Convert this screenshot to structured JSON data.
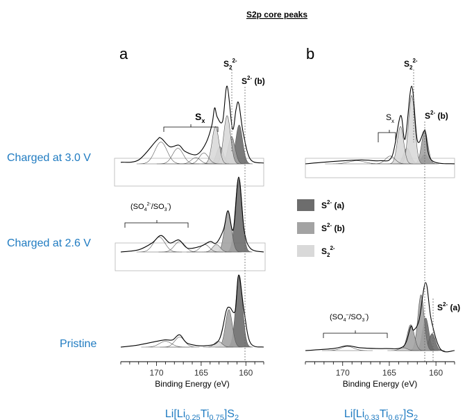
{
  "figure_title": "S2p core peaks",
  "panel_labels": {
    "a": "a",
    "b": "b"
  },
  "row_labels": {
    "charged_30": "Charged at 3.0 V",
    "charged_26": "Charged at 2.6 V",
    "pristine": "Pristine"
  },
  "compositions": {
    "a": {
      "pre": "Li[Li",
      "s1": "0.25",
      "mid": "Ti",
      "s2": "0.75",
      "post": "]S",
      "s3": "2"
    },
    "b": {
      "pre": "Li[Li",
      "s1": "0.33",
      "mid": "Ti",
      "s2": "0.67",
      "post": "]S",
      "s3": "2"
    }
  },
  "annotations": {
    "sx": {
      "base": "S",
      "sub": "x"
    },
    "s22": {
      "base": "S",
      "sub": "2",
      "sup": "2-"
    },
    "s2b": {
      "base": "S",
      "sup": "2-",
      "tail": " (b)"
    },
    "s2a": {
      "base": "S",
      "sup": "2-",
      "tail": " (a)"
    },
    "sulfate_a": {
      "o": "(SO",
      "sub1": "4",
      "sup1": "2-",
      "mid": "/SO",
      "sub2": "3",
      "sup2": "-",
      "c": ")"
    },
    "sulfate_b": {
      "o": "(SO",
      "sub1": "4",
      "sup1": "–",
      "mid": "/SO",
      "sub2": "3",
      "sup2": "-",
      "c": ")"
    }
  },
  "legend": [
    {
      "key": "s2a",
      "base": "S",
      "sup": "2-",
      "tail": " (a)",
      "color": "#6d6d6d"
    },
    {
      "key": "s2b",
      "base": "S",
      "sup": "2-",
      "tail": " (b)",
      "color": "#a3a3a3"
    },
    {
      "key": "s22",
      "base": "S",
      "sub": "2",
      "sup": "2-",
      "tail": "",
      "color": "#d9d9d9"
    }
  ],
  "colors": {
    "row_label": "#1f7bc1",
    "composition": "#1f7bc1",
    "s2a_fill": "#6d6d6d",
    "s2b_fill": "#a3a3a3",
    "s22_fill": "#d9d9d9",
    "envelope": "#000000"
  },
  "chart_data": {
    "type": "line",
    "xlabel": "Binding Energy (eV)",
    "x_reversed": true,
    "xlim": [
      174,
      158
    ],
    "x_ticks": [
      170,
      165,
      160
    ],
    "y_axis_shown": false,
    "panels": [
      {
        "panel": "a",
        "spectra": [
          {
            "row": "Charged at 3.0 V",
            "envelope": [
              [
                174,
                0.02
              ],
              [
                172,
                0.05
              ],
              [
                170,
                0.3
              ],
              [
                169.5,
                0.33
              ],
              [
                168.5,
                0.22
              ],
              [
                167.5,
                0.24
              ],
              [
                166.8,
                0.16
              ],
              [
                165.5,
                0.12
              ],
              [
                164.5,
                0.26
              ],
              [
                163.8,
                0.5
              ],
              [
                163.5,
                0.72
              ],
              [
                163.2,
                0.6
              ],
              [
                162.6,
                0.55
              ],
              [
                162.1,
                1.0
              ],
              [
                161.5,
                0.45
              ],
              [
                161.1,
                0.7
              ],
              [
                160.8,
                0.78
              ],
              [
                160.3,
                0.4
              ],
              [
                159.5,
                0.06
              ],
              [
                158,
                0.01
              ]
            ],
            "components": [
              {
                "species": "S2- (a)",
                "center": 160.75,
                "height": 0.5,
                "fwhm": 0.9
              },
              {
                "species": "S2- (b)",
                "center": 161.6,
                "height": 0.35,
                "fwhm": 0.9
              },
              {
                "species": "S2- (b)",
                "center": 162.9,
                "height": 0.22,
                "fwhm": 0.9
              },
              {
                "species": "S2 2-",
                "center": 162.1,
                "height": 0.62,
                "fwhm": 0.9
              },
              {
                "species": "S2 2-",
                "center": 163.4,
                "height": 0.48,
                "fwhm": 0.9
              },
              {
                "species": "Sx",
                "center": 164.7,
                "height": 0.14,
                "fwhm": 1.2
              },
              {
                "species": "Sx",
                "center": 165.6,
                "height": 0.08,
                "fwhm": 1.2
              },
              {
                "species": "SO4 2-/SO3 -",
                "center": 169.5,
                "height": 0.28,
                "fwhm": 1.6
              },
              {
                "species": "SO4 2-/SO3 -",
                "center": 167.6,
                "height": 0.2,
                "fwhm": 1.4
              }
            ]
          },
          {
            "row": "Charged at 2.6 V",
            "envelope": [
              [
                174,
                0.0
              ],
              [
                172,
                0.03
              ],
              [
                170.5,
                0.12
              ],
              [
                169.5,
                0.22
              ],
              [
                168.5,
                0.12
              ],
              [
                167.5,
                0.16
              ],
              [
                166.5,
                0.05
              ],
              [
                165,
                0.08
              ],
              [
                164,
                0.14
              ],
              [
                163.3,
                0.12
              ],
              [
                162.5,
                0.3
              ],
              [
                162.0,
                0.55
              ],
              [
                161.4,
                0.3
              ],
              [
                160.8,
                1.0
              ],
              [
                160.2,
                0.3
              ],
              [
                159.5,
                0.05
              ],
              [
                158,
                0.0
              ]
            ],
            "components": [
              {
                "species": "S2- (a)",
                "center": 160.8,
                "height": 1.0,
                "fwhm": 0.9
              },
              {
                "species": "S2- (b)",
                "center": 162.0,
                "height": 0.55,
                "fwhm": 0.9
              },
              {
                "species": "S2 2-",
                "center": 163.3,
                "height": 0.1,
                "fwhm": 1.0
              },
              {
                "species": "Sx",
                "center": 164.6,
                "height": 0.1,
                "fwhm": 1.2
              },
              {
                "species": "SO4 2-/SO3 -",
                "center": 169.7,
                "height": 0.2,
                "fwhm": 1.5
              },
              {
                "species": "SO4 2-/SO3 -",
                "center": 167.4,
                "height": 0.14,
                "fwhm": 1.4
              }
            ]
          },
          {
            "row": "Pristine",
            "envelope": [
              [
                174,
                0.0
              ],
              [
                172,
                0.03
              ],
              [
                170,
                0.08
              ],
              [
                169,
                0.1
              ],
              [
                168.2,
                0.1
              ],
              [
                167.4,
                0.17
              ],
              [
                166.5,
                0.05
              ],
              [
                164.5,
                0.02
              ],
              [
                163,
                0.1
              ],
              [
                162.2,
                0.5
              ],
              [
                161.8,
                0.55
              ],
              [
                161.2,
                0.5
              ],
              [
                160.8,
                1.0
              ],
              [
                160.2,
                0.5
              ],
              [
                159.5,
                0.06
              ],
              [
                158,
                0.0
              ]
            ],
            "components": [
              {
                "species": "S2- (a)",
                "center": 160.75,
                "height": 1.0,
                "fwhm": 0.9
              },
              {
                "species": "S2- (b)",
                "center": 161.9,
                "height": 0.52,
                "fwhm": 0.9
              },
              {
                "species": "S2 2-",
                "center": 163.1,
                "height": 0.08,
                "fwhm": 1.0
              },
              {
                "species": "SO4 2-/SO3 -",
                "center": 169.0,
                "height": 0.08,
                "fwhm": 1.6
              },
              {
                "species": "SO4 2-/SO3 -",
                "center": 167.4,
                "height": 0.14,
                "fwhm": 1.3
              }
            ]
          }
        ]
      },
      {
        "panel": "b",
        "spectra": [
          {
            "row": "Charged at 3.0 V",
            "envelope": [
              [
                174,
                0.0
              ],
              [
                171,
                0.03
              ],
              [
                168,
                0.05
              ],
              [
                166,
                0.04
              ],
              [
                164.7,
                0.1
              ],
              [
                163.8,
                0.62
              ],
              [
                163.3,
                0.32
              ],
              [
                162.6,
                1.0
              ],
              [
                162.0,
                0.3
              ],
              [
                161.3,
                0.42
              ],
              [
                161.1,
                0.4
              ],
              [
                160.5,
                0.05
              ],
              [
                158,
                0.0
              ]
            ],
            "components": [
              {
                "species": "S2- (a)",
                "center": 161.2,
                "height": 0.12,
                "fwhm": 0.9
              },
              {
                "species": "S2- (b)",
                "center": 161.2,
                "height": 0.42,
                "fwhm": 0.8
              },
              {
                "species": "S2- (b)",
                "center": 163.1,
                "height": 0.2,
                "fwhm": 0.9
              },
              {
                "species": "S2 2-",
                "center": 162.6,
                "height": 0.88,
                "fwhm": 0.8
              },
              {
                "species": "S2 2-",
                "center": 163.8,
                "height": 0.48,
                "fwhm": 0.8
              },
              {
                "species": "Sx",
                "center": 164.9,
                "height": 0.1,
                "fwhm": 1.2
              },
              {
                "species": "SO4 2-/SO3 -",
                "center": 168.5,
                "height": 0.04,
                "fwhm": 2.0
              }
            ]
          },
          {
            "row": "Pristine",
            "envelope": [
              [
                174,
                0.0
              ],
              [
                171,
                0.03
              ],
              [
                169.5,
                0.07
              ],
              [
                168,
                0.04
              ],
              [
                165.5,
                0.03
              ],
              [
                163.5,
                0.06
              ],
              [
                162.7,
                0.35
              ],
              [
                162.4,
                0.3
              ],
              [
                161.8,
                0.45
              ],
              [
                161.1,
                1.0
              ],
              [
                160.5,
                0.45
              ],
              [
                159.5,
                0.02
              ],
              [
                158,
                0.0
              ]
            ],
            "components": [
              {
                "species": "S2- (a)",
                "center": 161.1,
                "height": 0.48,
                "fwhm": 0.8
              },
              {
                "species": "S2- (a)",
                "center": 160.4,
                "height": 0.25,
                "fwhm": 0.8
              },
              {
                "species": "S2- (b)",
                "center": 161.6,
                "height": 0.82,
                "fwhm": 0.8
              },
              {
                "species": "S2- (b)",
                "center": 162.7,
                "height": 0.38,
                "fwhm": 0.9
              },
              {
                "species": "S2 2-",
                "center": 163.5,
                "height": 0.04,
                "fwhm": 1.0
              },
              {
                "species": "SO4 2-/SO3 -",
                "center": 169.5,
                "height": 0.06,
                "fwhm": 1.6
              }
            ]
          }
        ]
      }
    ]
  }
}
